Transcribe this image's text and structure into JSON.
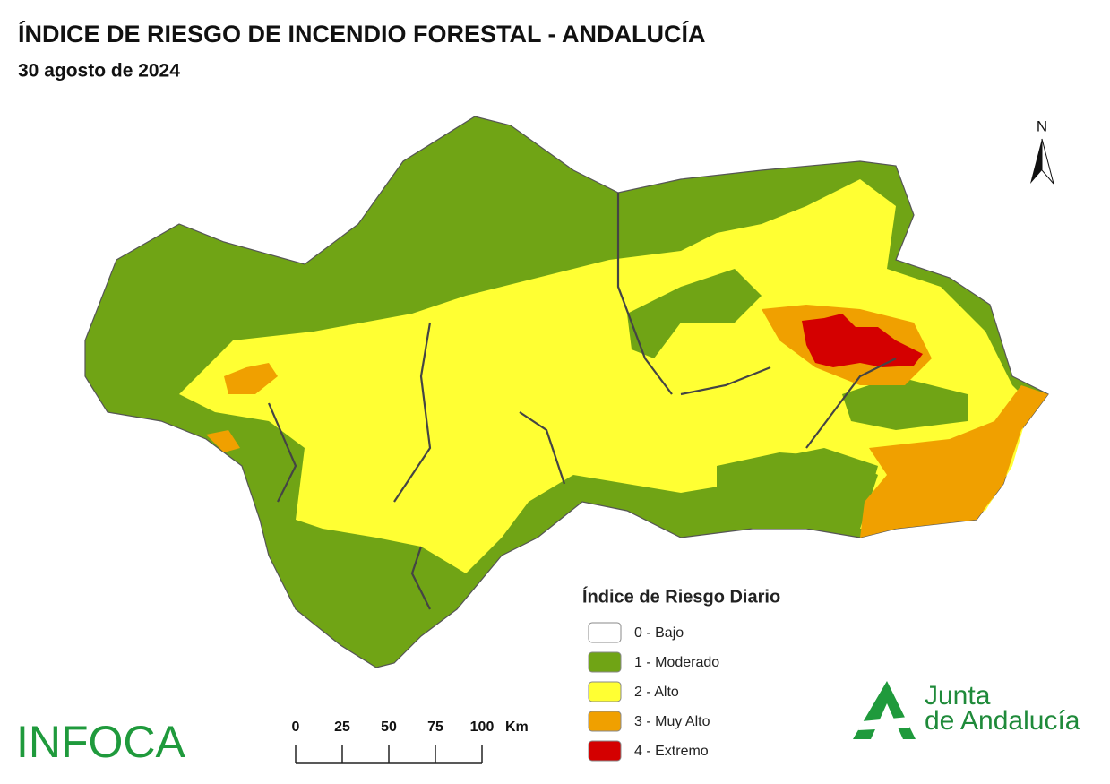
{
  "header": {
    "title": "ÍNDICE DE RIESGO DE INCENDIO FORESTAL - ANDALUCÍA",
    "date": "30 agosto de 2024"
  },
  "north": "N",
  "legend": {
    "title": "Índice de Riesgo Diario",
    "items": [
      {
        "label": "0 - Bajo",
        "color": "#ffffff"
      },
      {
        "label": "1 - Moderado",
        "color": "#70a415"
      },
      {
        "label": "2 - Alto",
        "color": "#ffff33"
      },
      {
        "label": "3 - Muy Alto",
        "color": "#f0a000"
      },
      {
        "label": "4 - Extremo",
        "color": "#d40000"
      }
    ]
  },
  "scale_bar": {
    "ticks": [
      0,
      25,
      50,
      75,
      100
    ],
    "unit": "Km"
  },
  "logos": {
    "infoca": "INFOCA",
    "junta": [
      "Junta",
      "de Andalucía"
    ]
  }
}
